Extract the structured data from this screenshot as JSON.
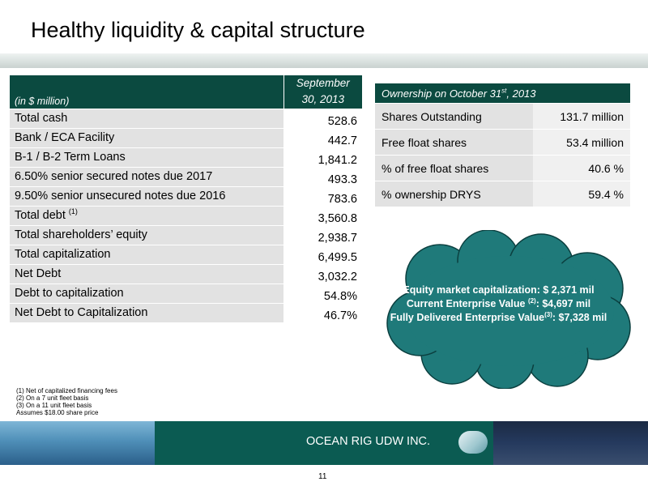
{
  "title": "Healthy liquidity & capital structure",
  "left_table": {
    "unit_label": "(in $ million)",
    "date_header": "September 30, 2013",
    "rows": [
      {
        "label": "Total cash",
        "value": "528.6"
      },
      {
        "label": "Bank / ECA Facility",
        "value": "442.7"
      },
      {
        "label": "B-1 / B-2 Term Loans",
        "value": "1,841.2"
      },
      {
        "label": "6.50% senior secured notes due 2017",
        "value": "493.3"
      },
      {
        "label": "9.50% senior unsecured notes due 2016",
        "value": "783.6"
      },
      {
        "label": "Total debt",
        "footnote": "(1)",
        "value": "3,560.8"
      },
      {
        "label": "Total shareholders’ equity",
        "value": "2,938.7"
      },
      {
        "label": "Total capitalization",
        "value": "6,499.5"
      },
      {
        "label": "Net Debt",
        "value": "3,032.2"
      },
      {
        "label": "Debt  to capitalization",
        "value": "54.8%"
      },
      {
        "label": "Net Debt to Capitalization",
        "value": "46.7%"
      }
    ]
  },
  "right_table": {
    "header_prefix": "Ownership on October 31",
    "header_sup": "st",
    "header_suffix": ", 2013",
    "rows": [
      {
        "label": "Shares Outstanding",
        "value": "131.7 million"
      },
      {
        "label": "Free float shares",
        "value": "53.4 million"
      },
      {
        "label": "% of free float shares",
        "value": "40.6 %"
      },
      {
        "label": "% ownership DRYS",
        "value": "59.4 %"
      }
    ]
  },
  "cloud": {
    "line1": "Equity market capitalization: $ 2,371 mil",
    "line2_a": "Current Enterprise Value ",
    "line2_sup": "(2)",
    "line2_b": ": $4,697 mil",
    "line3_a": "Fully Delivered Enterprise Value",
    "line3_sup": "(3)",
    "line3_b": ": $7,328 mil",
    "fill_color": "#1f7a7a"
  },
  "footnotes": [
    "(1) Net of capitalized  financing fees",
    "(2) On a 7 unit fleet basis",
    "(3) On a 11 unit fleet basis",
    "Assumes $18.00 share price"
  ],
  "footer": {
    "company": "OCEAN RIG UDW INC.",
    "bar_color": "#0b5b52"
  },
  "page_number": "11"
}
